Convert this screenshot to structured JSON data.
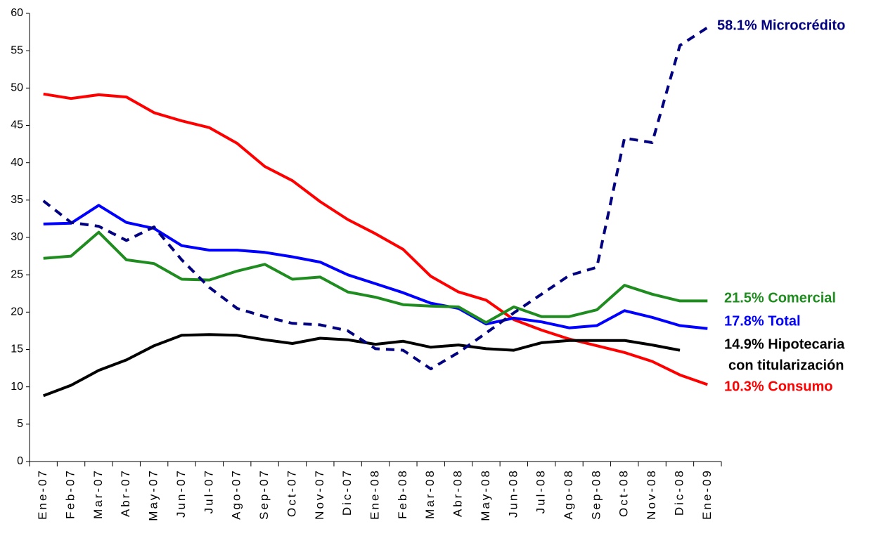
{
  "chart_data": {
    "type": "line",
    "categories": [
      "Ene-07",
      "Feb-07",
      "Mar-07",
      "Abr-07",
      "May-07",
      "Jun-07",
      "Jul-07",
      "Ago-07",
      "Sep-07",
      "Oct-07",
      "Nov-07",
      "Dic-07",
      "Ene-08",
      "Feb-08",
      "Mar-08",
      "Abr-08",
      "May-08",
      "Jun-08",
      "Jul-08",
      "Ago-08",
      "Sep-08",
      "Oct-08",
      "Nov-08",
      "Dic-08",
      "Ene-09"
    ],
    "ylim": [
      0,
      60
    ],
    "yticks": [
      0,
      5,
      10,
      15,
      20,
      25,
      30,
      35,
      40,
      45,
      50,
      55,
      60
    ],
    "grid": false,
    "series": [
      {
        "label": "10.3% Consumo",
        "color": "#ff0000",
        "dashed": false,
        "values": [
          49.2,
          48.6,
          49.1,
          48.8,
          46.7,
          45.6,
          44.7,
          42.6,
          39.5,
          37.6,
          34.8,
          32.4,
          30.5,
          28.4,
          24.8,
          22.7,
          21.6,
          19.0,
          17.6,
          16.4,
          15.5,
          14.6,
          13.4,
          11.6,
          10.3
        ]
      },
      {
        "label": "17.8% Total",
        "color": "#0000ff",
        "dashed": false,
        "values": [
          31.8,
          31.9,
          34.3,
          32.0,
          31.2,
          28.9,
          28.3,
          28.3,
          28.0,
          27.4,
          26.7,
          25.0,
          23.8,
          22.6,
          21.2,
          20.5,
          18.4,
          19.2,
          18.7,
          17.9,
          18.2,
          20.2,
          19.3,
          18.2,
          17.8
        ]
      },
      {
        "label": "21.5% Comercial",
        "color": "#1e8c1e",
        "dashed": false,
        "values": [
          27.2,
          27.5,
          30.7,
          27.0,
          26.5,
          24.4,
          24.3,
          25.5,
          26.4,
          24.4,
          24.7,
          22.7,
          22.0,
          21.0,
          20.8,
          20.7,
          18.6,
          20.7,
          19.4,
          19.4,
          20.3,
          23.6,
          22.4,
          21.5,
          21.5
        ]
      },
      {
        "label": [
          "14.9% Hipotecaria",
          "con titularización"
        ],
        "color": "#000000",
        "dashed": false,
        "values": [
          8.8,
          10.2,
          12.2,
          13.6,
          15.5,
          16.9,
          17.0,
          16.9,
          16.3,
          15.8,
          16.5,
          16.3,
          15.7,
          16.1,
          15.3,
          15.6,
          15.1,
          14.9,
          15.9,
          16.2,
          16.2,
          16.2,
          15.6,
          14.9,
          null
        ]
      },
      {
        "label": "58.1% Microcrédito",
        "color": "#000080",
        "dashed": true,
        "values": [
          34.9,
          32.0,
          31.5,
          29.6,
          31.4,
          27.0,
          23.3,
          20.5,
          19.4,
          18.5,
          18.3,
          17.5,
          15.1,
          14.9,
          12.4,
          14.6,
          17.2,
          19.9,
          22.4,
          24.9,
          26.0,
          43.3,
          42.7,
          55.7,
          58.1
        ]
      }
    ]
  }
}
